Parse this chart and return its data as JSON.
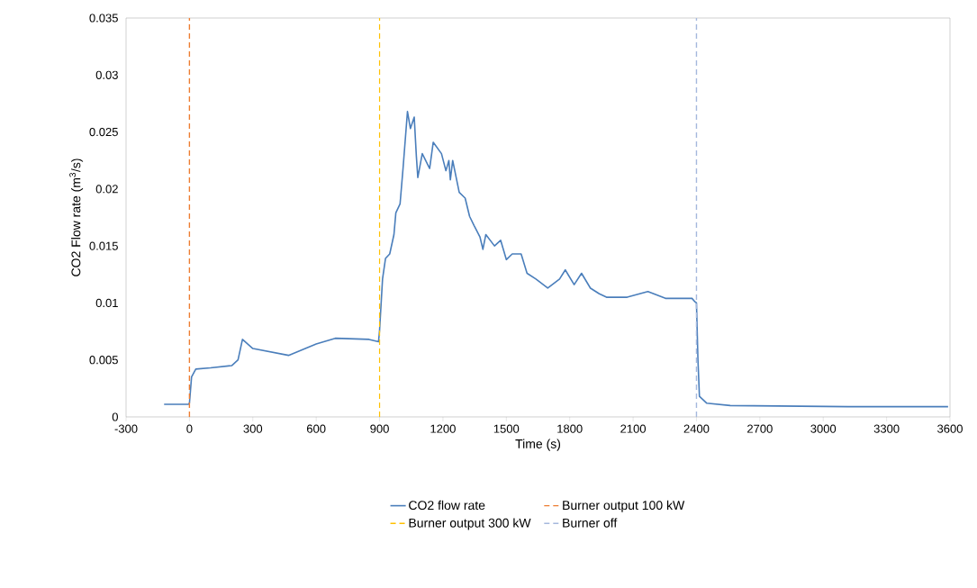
{
  "chart_data": {
    "type": "line",
    "xlabel": "Time (s)",
    "ylabel": "CO2 Flow rate (m$^{3}$/s)",
    "xlim": [
      -300,
      3600
    ],
    "xticks": [
      -300,
      0,
      300,
      600,
      900,
      1200,
      1500,
      1800,
      2100,
      2400,
      2700,
      3000,
      3300,
      3600
    ],
    "ylim": [
      0,
      0.035
    ],
    "yticks": [
      0,
      0.005,
      0.01,
      0.015,
      0.02,
      0.025,
      0.03,
      0.035
    ],
    "legend": "bottom",
    "line_style": "solid",
    "series": [
      {
        "name": "CO2 flow rate",
        "color": "#4a7ebb",
        "x": [
          -120,
          -5,
          0,
          10,
          30,
          100,
          200,
          230,
          251,
          300,
          469,
          600,
          690,
          850,
          895,
          900,
          914,
          928,
          948,
          968,
          977,
          997,
          1011,
          1032,
          1046,
          1064,
          1074,
          1081,
          1102,
          1137,
          1154,
          1193,
          1214,
          1228,
          1235,
          1246,
          1277,
          1305,
          1326,
          1347,
          1375,
          1389,
          1403,
          1444,
          1473,
          1500,
          1528,
          1570,
          1598,
          1640,
          1696,
          1752,
          1779,
          1821,
          1856,
          1898,
          1940,
          1974,
          2072,
          2170,
          2253,
          2379,
          2393,
          2400,
          2407,
          2414,
          2449,
          2560,
          3118,
          3591
        ],
        "values": [
          0.0011,
          0.0011,
          0.0012,
          0.0035,
          0.0042,
          0.0043,
          0.0045,
          0.005,
          0.0068,
          0.006,
          0.0054,
          0.0064,
          0.0069,
          0.0068,
          0.0066,
          0.0076,
          0.0121,
          0.0139,
          0.0143,
          0.016,
          0.0179,
          0.0187,
          0.0218,
          0.0268,
          0.0253,
          0.0263,
          0.0229,
          0.021,
          0.0231,
          0.0218,
          0.0241,
          0.0231,
          0.0216,
          0.0225,
          0.0208,
          0.0225,
          0.0197,
          0.0192,
          0.0176,
          0.0168,
          0.0158,
          0.0147,
          0.016,
          0.015,
          0.0155,
          0.0138,
          0.0143,
          0.0143,
          0.0126,
          0.0121,
          0.0113,
          0.0121,
          0.0129,
          0.0116,
          0.0126,
          0.0113,
          0.0108,
          0.0105,
          0.0105,
          0.011,
          0.0104,
          0.0104,
          0.0101,
          0.01,
          0.005,
          0.0018,
          0.0012,
          0.001,
          0.0009,
          0.0009
        ]
      }
    ],
    "ref_lines": [
      {
        "axis": "x",
        "value": 0,
        "label": "Burner output 100 kW",
        "color": "#ed7d31",
        "line_style": "dashed"
      },
      {
        "axis": "x",
        "value": 900,
        "label": "Burner output 300 kW",
        "color": "#ffc000",
        "line_style": "dashed"
      },
      {
        "axis": "x",
        "value": 2400,
        "label": "Burner off",
        "color": "#a5b8dd",
        "line_style": "dashed"
      }
    ]
  }
}
